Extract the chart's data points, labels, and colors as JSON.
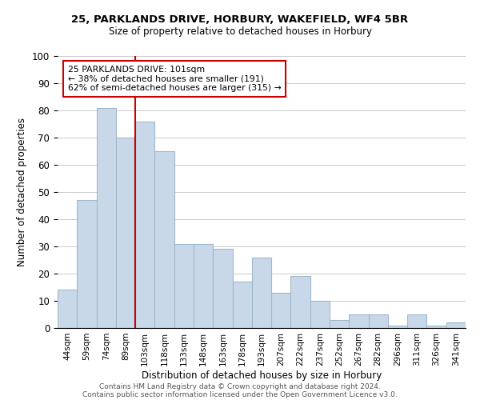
{
  "title1": "25, PARKLANDS DRIVE, HORBURY, WAKEFIELD, WF4 5BR",
  "title2": "Size of property relative to detached houses in Horbury",
  "xlabel": "Distribution of detached houses by size in Horbury",
  "ylabel": "Number of detached properties",
  "bar_labels": [
    "44sqm",
    "59sqm",
    "74sqm",
    "89sqm",
    "103sqm",
    "118sqm",
    "133sqm",
    "148sqm",
    "163sqm",
    "178sqm",
    "193sqm",
    "207sqm",
    "222sqm",
    "237sqm",
    "252sqm",
    "267sqm",
    "282sqm",
    "296sqm",
    "311sqm",
    "326sqm",
    "341sqm"
  ],
  "bar_values": [
    14,
    47,
    81,
    70,
    76,
    65,
    31,
    31,
    29,
    17,
    26,
    13,
    19,
    10,
    3,
    5,
    5,
    1,
    5,
    1,
    2
  ],
  "bar_color": "#c8d8e8",
  "bar_edge_color": "#a0b8cc",
  "vline_index": 4,
  "vline_color": "#cc0000",
  "annotation_title": "25 PARKLANDS DRIVE: 101sqm",
  "annotation_line1": "← 38% of detached houses are smaller (191)",
  "annotation_line2": "62% of semi-detached houses are larger (315) →",
  "annotation_box_color": "#ffffff",
  "annotation_box_edge_color": "#cc0000",
  "ylim": [
    0,
    100
  ],
  "footer1": "Contains HM Land Registry data © Crown copyright and database right 2024.",
  "footer2": "Contains public sector information licensed under the Open Government Licence v3.0."
}
